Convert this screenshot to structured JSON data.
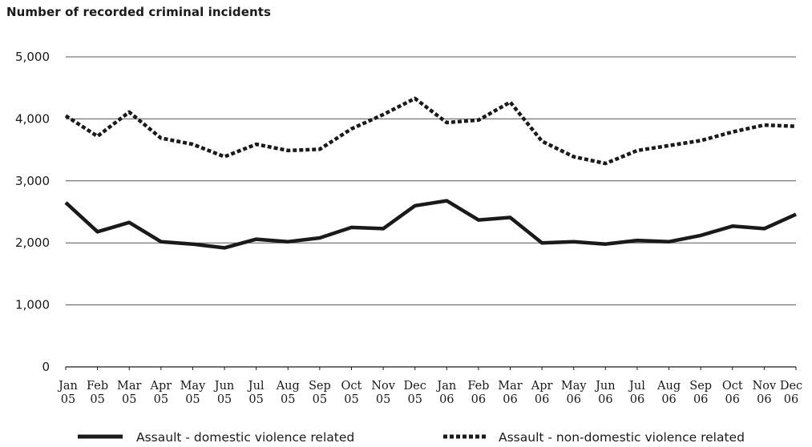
{
  "chart_data": {
    "type": "line",
    "title": "Number of recorded criminal incidents",
    "xlabel": "",
    "ylabel": "",
    "ylim": [
      0,
      5000
    ],
    "yticks": [
      0,
      1000,
      2000,
      3000,
      4000,
      5000
    ],
    "ytick_labels": [
      "0",
      "1,000",
      "2,000",
      "3,000",
      "4,000",
      "5,000"
    ],
    "grid": true,
    "legend_position": "bottom",
    "categories": [
      [
        "Jan",
        "05"
      ],
      [
        "Feb",
        "05"
      ],
      [
        "Mar",
        "05"
      ],
      [
        "Apr",
        "05"
      ],
      [
        "May",
        "05"
      ],
      [
        "Jun",
        "05"
      ],
      [
        "Jul",
        "05"
      ],
      [
        "Aug",
        "05"
      ],
      [
        "Sep",
        "05"
      ],
      [
        "Oct",
        "05"
      ],
      [
        "Nov",
        "05"
      ],
      [
        "Dec",
        "05"
      ],
      [
        "Jan",
        "06"
      ],
      [
        "Feb",
        "06"
      ],
      [
        "Mar",
        "06"
      ],
      [
        "Apr",
        "06"
      ],
      [
        "May",
        "06"
      ],
      [
        "Jun",
        "06"
      ],
      [
        "Jul",
        "06"
      ],
      [
        "Aug",
        "06"
      ],
      [
        "Sep",
        "06"
      ],
      [
        "Oct",
        "06"
      ],
      [
        "Nov",
        "06"
      ],
      [
        "Dec",
        "06"
      ]
    ],
    "series": [
      {
        "name": "Assault - domestic violence related",
        "style": "solid",
        "color": "#1a1a1a",
        "values": [
          2650,
          2180,
          2330,
          2020,
          1980,
          1920,
          2060,
          2020,
          2080,
          2250,
          2230,
          2600,
          2680,
          2370,
          2410,
          2000,
          2020,
          1980,
          2040,
          2020,
          2120,
          2270,
          2230,
          2460
        ]
      },
      {
        "name": "Assault - non-domestic violence related",
        "style": "dashed",
        "color": "#1a1a1a",
        "values": [
          4050,
          3720,
          4110,
          3690,
          3590,
          3390,
          3590,
          3490,
          3510,
          3840,
          4070,
          4330,
          3940,
          3980,
          4270,
          3640,
          3390,
          3280,
          3490,
          3570,
          3650,
          3790,
          3900,
          3880
        ]
      }
    ]
  }
}
